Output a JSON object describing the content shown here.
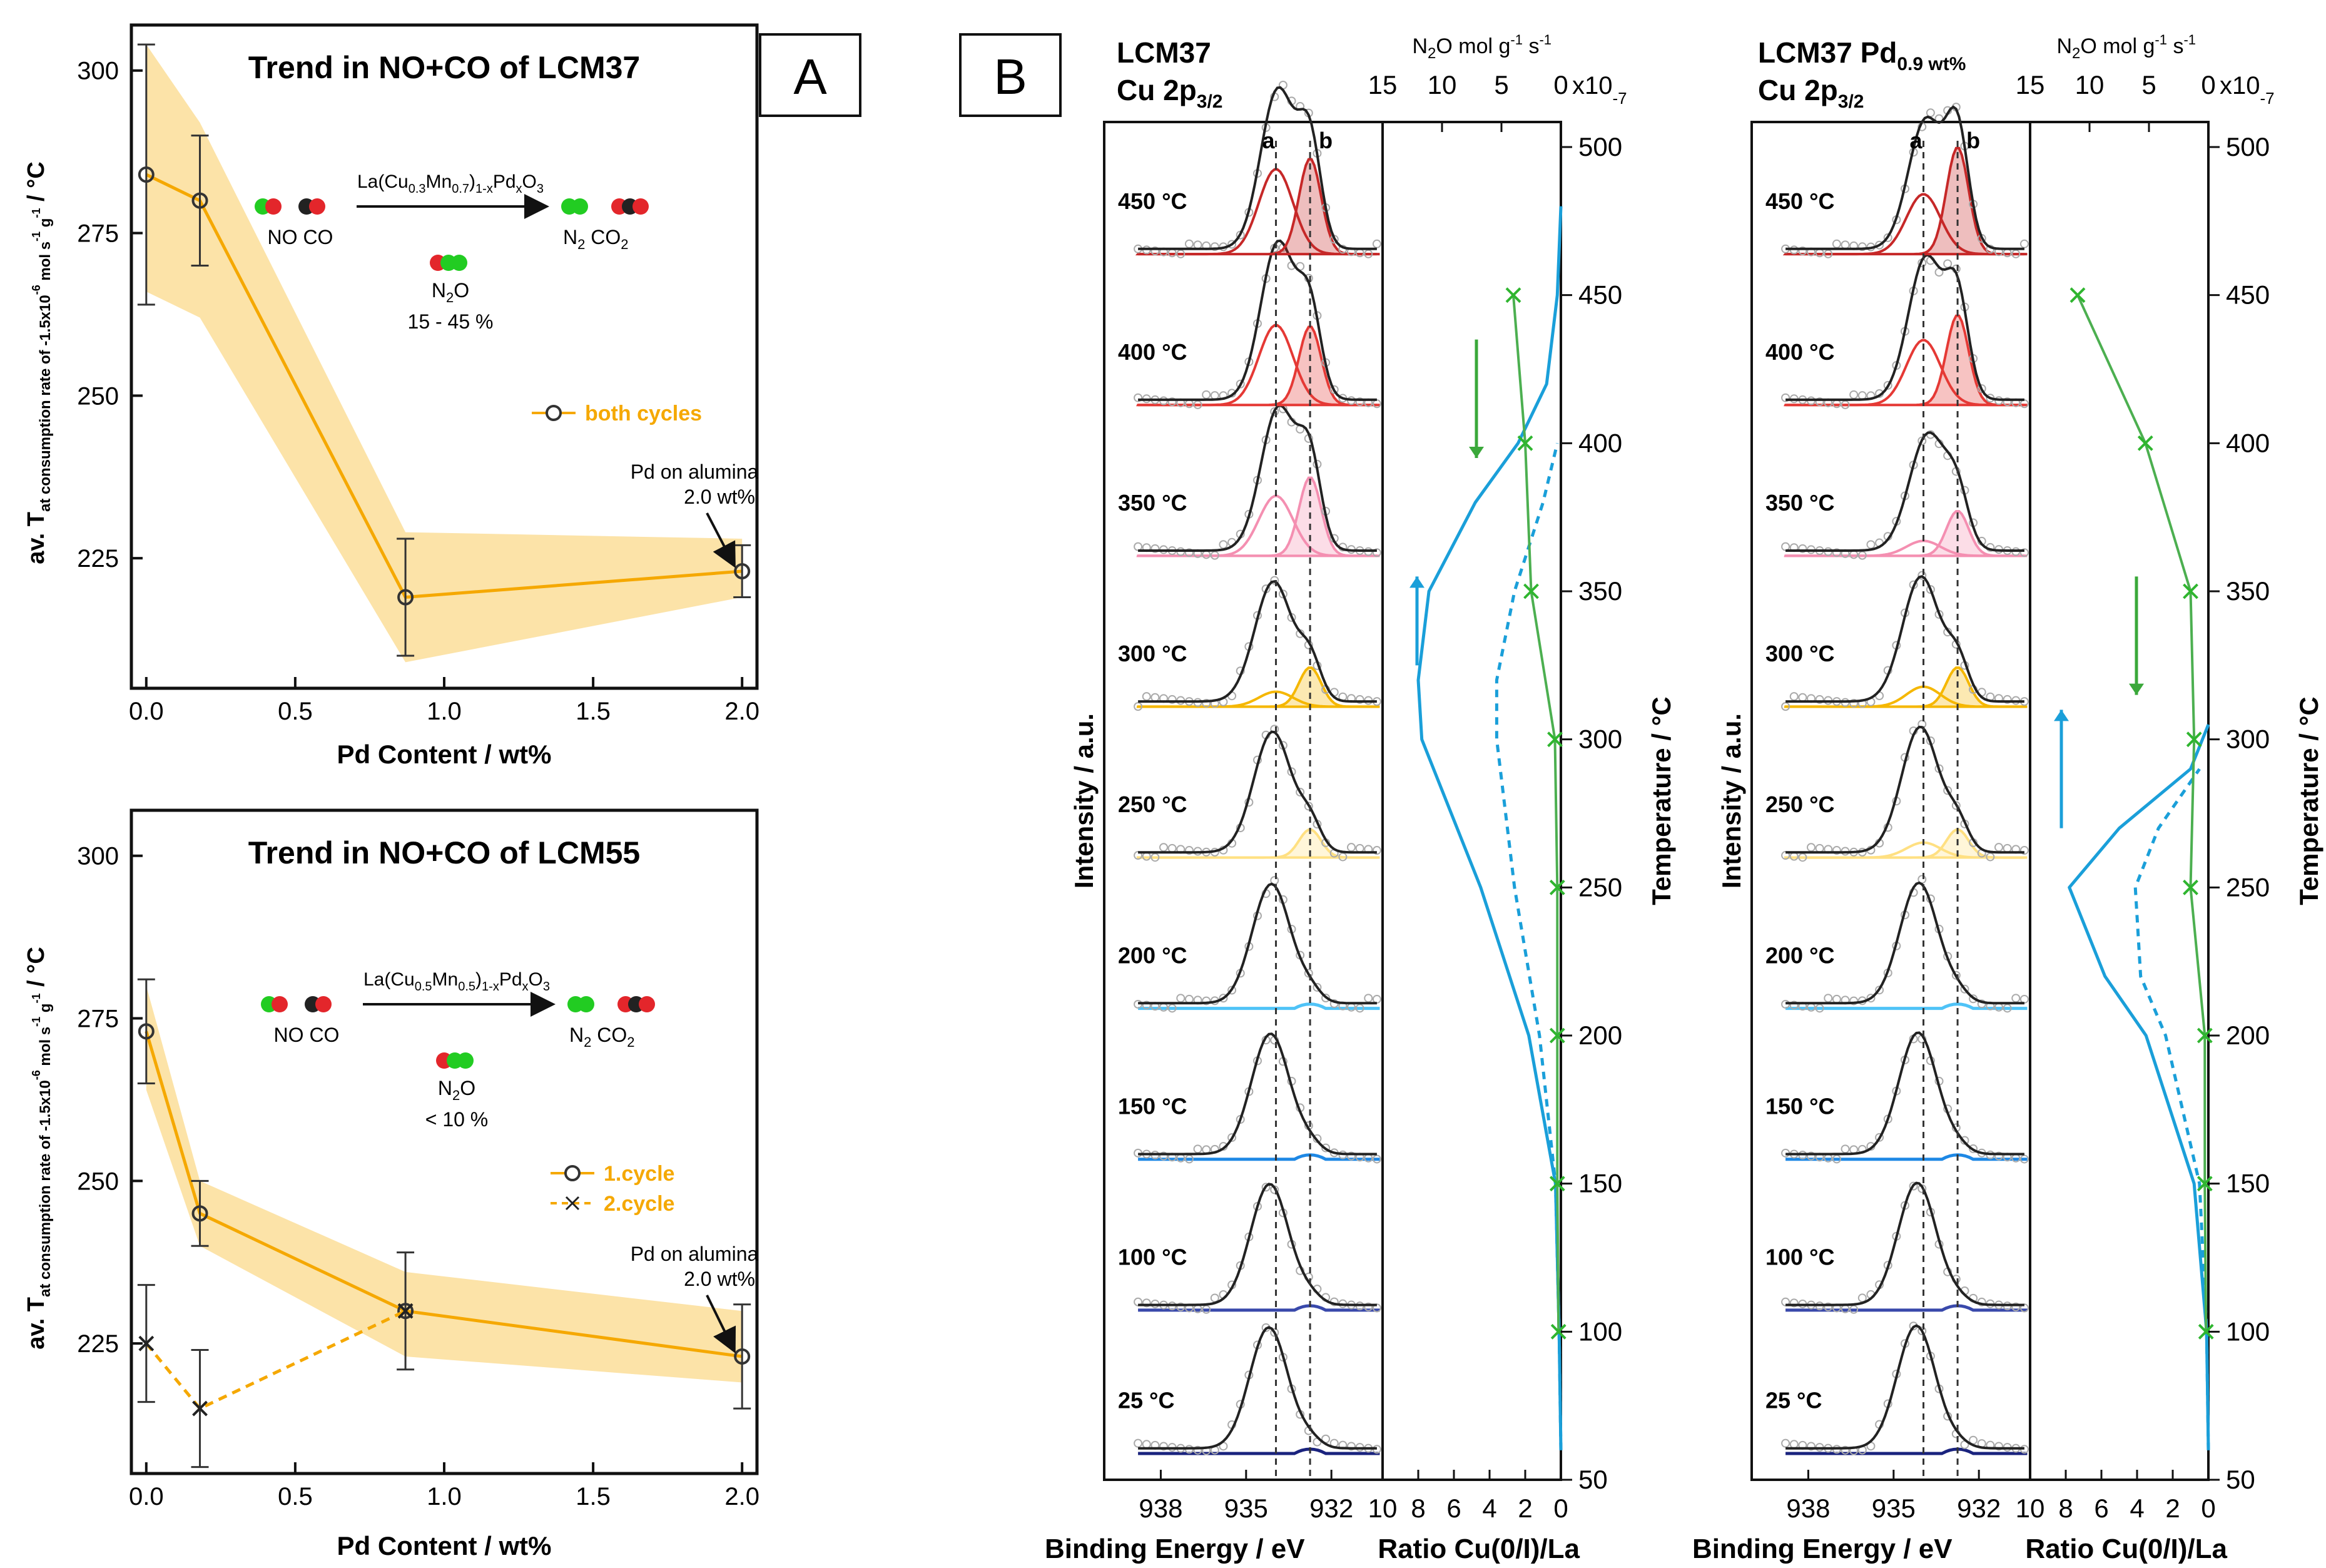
{
  "panel_labels": {
    "a": "A",
    "b": "B"
  },
  "chart_data": [
    {
      "id": "lcm37_trend",
      "type": "line",
      "title": "Trend in NO+CO of LCM37",
      "xlabel": "Pd Content / wt%",
      "ylabel_main": "av. T",
      "ylabel_sub": "at consumption rate of -1.5x10",
      "ylabel_exp": "-6",
      "ylabel_units": "mol s",
      "ylabel_exp2": "-1",
      "ylabel_units2": "g",
      "ylabel_exp3": "-1",
      "ylabel_end": "/ °C",
      "xlim": [
        -0.05,
        2.05
      ],
      "ylim": [
        205,
        307
      ],
      "xticks": [
        0.0,
        0.5,
        1.0,
        1.5,
        2.0
      ],
      "xtick_labels": [
        "0.0",
        "0.5",
        "1.0",
        "1.5",
        "2.0"
      ],
      "yticks": [
        225,
        250,
        275,
        300
      ],
      "ytick_labels": [
        "225",
        "250",
        "275",
        "300"
      ],
      "series": [
        {
          "name": "both cycles",
          "style": "solid-circle",
          "x": [
            0.0,
            0.18,
            0.87,
            2.0
          ],
          "y": [
            284,
            280,
            219,
            223
          ],
          "err": [
            20,
            10,
            9,
            4
          ],
          "band_low": [
            266,
            262,
            209,
            219
          ],
          "band_high": [
            304,
            292,
            229,
            228
          ]
        }
      ],
      "scheme": {
        "formula": "La(Cu0.3Mn0.7)1-xPdxO3",
        "formula_parts": [
          "La(Cu",
          "0.3",
          "Mn",
          "0.7",
          ")",
          "1-x",
          "Pd",
          "x",
          "O",
          "3"
        ],
        "reactants": "NO CO",
        "product_n2": "N",
        "product_n2_sub": "2",
        "product_co2": "CO",
        "product_co2_sub": "2",
        "byproduct": "N",
        "byproduct_sub": "2",
        "byproduct_end": "O",
        "selectivity": "15 - 45 %"
      },
      "annotation": {
        "line1": "Pd on alumina",
        "line2": "2.0 wt%"
      }
    },
    {
      "id": "lcm55_trend",
      "type": "line",
      "title": "Trend in NO+CO of LCM55",
      "xlabel": "Pd Content / wt%",
      "ylabel_main": "av. T",
      "ylabel_sub": "at consumption rate of -1.5x10",
      "ylabel_exp": "-6",
      "ylabel_units": "mol s",
      "ylabel_exp2": "-1",
      "ylabel_units2": "g",
      "ylabel_exp3": "-1",
      "ylabel_end": "/ °C",
      "xlim": [
        -0.05,
        2.05
      ],
      "ylim": [
        205,
        307
      ],
      "xticks": [
        0.0,
        0.5,
        1.0,
        1.5,
        2.0
      ],
      "xtick_labels": [
        "0.0",
        "0.5",
        "1.0",
        "1.5",
        "2.0"
      ],
      "yticks": [
        225,
        250,
        275,
        300
      ],
      "ytick_labels": [
        "225",
        "250",
        "275",
        "300"
      ],
      "series": [
        {
          "name": "1.cycle",
          "style": "solid-circle",
          "x": [
            0.0,
            0.18,
            0.87,
            2.0
          ],
          "y": [
            273,
            245,
            230,
            223
          ],
          "err": [
            8,
            5,
            9,
            8
          ],
          "band_low": [
            264,
            240,
            223,
            219
          ],
          "band_high": [
            280,
            250,
            236,
            230
          ]
        },
        {
          "name": "2.cycle",
          "style": "dashed-cross",
          "x": [
            0.0,
            0.18,
            0.87
          ],
          "y": [
            225,
            215,
            230
          ],
          "err": [
            9,
            9,
            0
          ]
        }
      ],
      "scheme": {
        "formula": "La(Cu0.5Mn0.5)1-xPdxO3",
        "formula_parts": [
          "La(Cu",
          "0.5",
          "Mn",
          "0.5",
          ")",
          "1-x",
          "Pd",
          "x",
          "O",
          "3"
        ],
        "reactants": "NO CO",
        "product_n2": "N",
        "product_n2_sub": "2",
        "product_co2": "CO",
        "product_co2_sub": "2",
        "byproduct": "N",
        "byproduct_sub": "2",
        "byproduct_end": "O",
        "selectivity": "< 10 %"
      },
      "annotation": {
        "line1": "Pd on alumina",
        "line2": "2.0 wt%"
      }
    },
    {
      "id": "lcm37_xps",
      "type": "line",
      "title_line1": "LCM37",
      "title_line2": "Cu 2p",
      "title_sub": "3/2",
      "xlabel_xps": "Binding Energy / eV",
      "xlabel_ratio": "Ratio Cu(0/I)/La",
      "ylabel_left": "Intensity / a.u.",
      "ylabel_right": "Temperature / °C",
      "top_axis_label": "N",
      "top_axis_sub": "2",
      "top_axis_label2": "O mol g",
      "top_axis_exp1": "-1",
      "top_axis_label3": "s",
      "top_axis_exp2": "-1",
      "top_axis_scale": "x10",
      "top_axis_scale_exp": "-7",
      "xps_xticks": [
        938,
        935,
        932
      ],
      "xps_xtick_labels": [
        "938",
        "935",
        "932"
      ],
      "peak_a_label": "a",
      "peak_b_label": "b",
      "ratio_xticks": [
        10,
        8,
        6,
        4,
        2,
        0
      ],
      "ratio_xtick_labels": [
        "10",
        "8",
        "6",
        "4",
        "2",
        "0"
      ],
      "n2o_xticks": [
        15,
        10,
        5,
        0
      ],
      "n2o_xtick_labels": [
        "15",
        "10",
        "5",
        "0"
      ],
      "temp_ticks": [
        50,
        100,
        150,
        200,
        250,
        300,
        350,
        400,
        450,
        500
      ],
      "temp_tick_labels": [
        "50",
        "100",
        "150",
        "200",
        "250",
        "300",
        "350",
        "400",
        "450",
        "500"
      ],
      "spectra_labels": [
        "25 °C",
        "100 °C",
        "150 °C",
        "200 °C",
        "250 °C",
        "300 °C",
        "350 °C",
        "400 °C",
        "450 °C"
      ],
      "spectra_colors": [
        "#1a237e",
        "#3949ab",
        "#1e88e5",
        "#4fc3f7",
        "#ffe082",
        "#f5b700",
        "#f48fb1",
        "#e53935",
        "#c62828"
      ],
      "component_a_weight": [
        0.0,
        0.0,
        0.0,
        0.0,
        0.1,
        0.15,
        0.6,
        0.8,
        0.85
      ],
      "component_b_weight": [
        0.07,
        0.07,
        0.08,
        0.1,
        0.25,
        0.35,
        0.7,
        0.7,
        0.85
      ],
      "n2o_series": {
        "name": "N2O",
        "temp": [
          100,
          150,
          200,
          250,
          300,
          350,
          400,
          450
        ],
        "value": [
          0.2,
          0.3,
          0.3,
          0.3,
          0.5,
          2.5,
          3.0,
          4.0
        ]
      },
      "ratio_heating": {
        "temp": [
          60,
          100,
          150,
          200,
          250,
          300,
          320,
          350,
          380,
          400,
          420,
          450,
          480
        ],
        "value": [
          0.0,
          0.1,
          0.3,
          1.8,
          4.5,
          7.8,
          8.0,
          7.4,
          4.8,
          2.4,
          0.8,
          0.2,
          0.0
        ]
      },
      "ratio_cooling": {
        "temp": [
          60,
          100,
          150,
          200,
          250,
          300,
          320,
          350,
          380,
          400
        ],
        "value": [
          0.0,
          0.1,
          0.3,
          1.2,
          2.6,
          3.6,
          3.6,
          2.6,
          1.0,
          0.2
        ]
      }
    },
    {
      "id": "lcm37pd_xps",
      "type": "line",
      "title_line1": "LCM37 Pd",
      "title_line1_sub": "0.9 wt%",
      "title_line2": "Cu 2p",
      "title_sub": "3/2",
      "xlabel_xps": "Binding Energy / eV",
      "xlabel_ratio": "Ratio Cu(0/I)/La",
      "ylabel_left": "Intensity / a.u.",
      "ylabel_right": "Temperature / °C",
      "top_axis_label": "N",
      "top_axis_sub": "2",
      "top_axis_label2": "O mol g",
      "top_axis_exp1": "-1",
      "top_axis_label3": "s",
      "top_axis_exp2": "-1",
      "top_axis_scale": "x10",
      "top_axis_scale_exp": "-7",
      "xps_xticks": [
        938,
        935,
        932
      ],
      "xps_xtick_labels": [
        "938",
        "935",
        "932"
      ],
      "peak_a_label": "a",
      "peak_b_label": "b",
      "ratio_xticks": [
        10,
        8,
        6,
        4,
        2,
        0
      ],
      "ratio_xtick_labels": [
        "10",
        "8",
        "6",
        "4",
        "2",
        "0"
      ],
      "n2o_xticks": [
        15,
        10,
        5,
        0
      ],
      "n2o_xtick_labels": [
        "15",
        "10",
        "5",
        "0"
      ],
      "temp_ticks": [
        50,
        100,
        150,
        200,
        250,
        300,
        350,
        400,
        450,
        500
      ],
      "temp_tick_labels": [
        "50",
        "100",
        "150",
        "200",
        "250",
        "300",
        "350",
        "400",
        "450",
        "500"
      ],
      "spectra_labels": [
        "25 °C",
        "100 °C",
        "150 °C",
        "200 °C",
        "250 °C",
        "300 °C",
        "350 °C",
        "400 °C",
        "450 °C"
      ],
      "spectra_colors": [
        "#1a237e",
        "#3949ab",
        "#1e88e5",
        "#4fc3f7",
        "#ffe082",
        "#f5b700",
        "#f48fb1",
        "#e53935",
        "#c62828"
      ],
      "component_a_weight": [
        0.0,
        0.0,
        0.0,
        0.0,
        0.15,
        0.2,
        0.15,
        0.65,
        0.6
      ],
      "component_b_weight": [
        0.04,
        0.05,
        0.06,
        0.08,
        0.25,
        0.35,
        0.4,
        0.8,
        0.95
      ],
      "n2o_series": {
        "name": "N2O",
        "temp": [
          100,
          150,
          200,
          250,
          300,
          350,
          400,
          450
        ],
        "value": [
          0.2,
          0.3,
          0.3,
          1.5,
          1.2,
          1.5,
          5.3,
          11.0
        ]
      },
      "ratio_heating": {
        "temp": [
          60,
          100,
          150,
          200,
          220,
          250,
          270,
          290,
          305
        ],
        "value": [
          0.0,
          0.1,
          0.8,
          3.5,
          5.8,
          7.8,
          5.0,
          1.0,
          0.0
        ]
      },
      "ratio_cooling": {
        "temp": [
          60,
          100,
          150,
          200,
          220,
          250,
          270,
          290
        ],
        "value": [
          0.0,
          0.1,
          0.5,
          2.4,
          3.8,
          4.1,
          2.8,
          0.5
        ]
      }
    }
  ],
  "colors": {
    "orange": "#f5a800",
    "band": "#fce3a8",
    "green": "#4caf50",
    "blue": "#1a9fd9",
    "mol_green": "#22cc22",
    "mol_red": "#e3262b",
    "mol_black": "#222222"
  }
}
